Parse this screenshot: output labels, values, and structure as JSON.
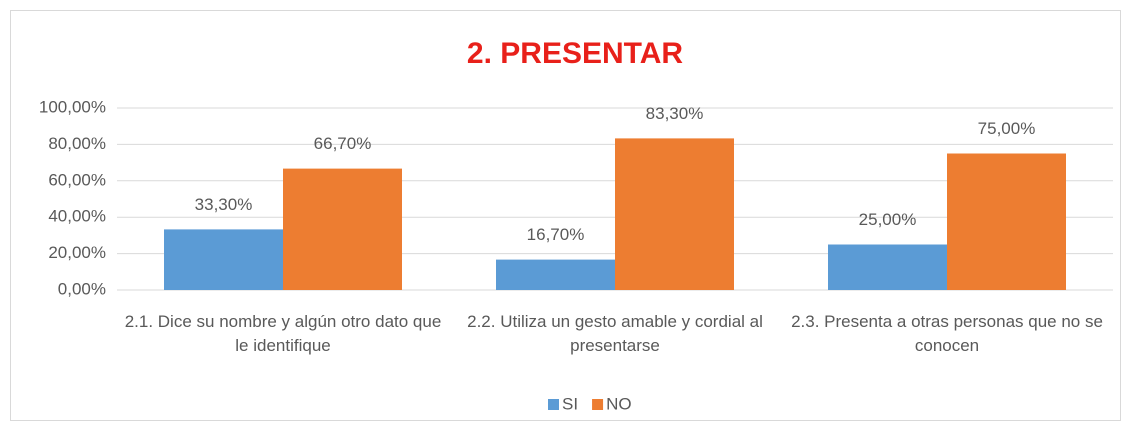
{
  "chart_data": {
    "type": "bar",
    "title": "2. PRESENTAR",
    "categories": [
      "2.1. Dice su nombre y algún otro dato que le identifique",
      "2.2. Utiliza un gesto amable y cordial al presentarse",
      "2.3. Presenta a otras personas que no se conocen"
    ],
    "series": [
      {
        "name": "SI",
        "color": "#5b9bd5",
        "values": [
          33.3,
          16.7,
          25
        ],
        "value_labels": [
          "33,30%",
          "16,70%",
          "25,00%"
        ]
      },
      {
        "name": "NO",
        "color": "#ed7d31",
        "values": [
          66.7,
          83.3,
          75
        ],
        "value_labels": [
          "66,70%",
          "83,30%",
          "75,00%"
        ]
      }
    ],
    "ylim": [
      0,
      100
    ],
    "yticks": [
      {
        "value": 0,
        "label": "0,00%"
      },
      {
        "value": 20,
        "label": "20,00%"
      },
      {
        "value": 40,
        "label": "40,00%"
      },
      {
        "value": 60,
        "label": "60,00%"
      },
      {
        "value": 80,
        "label": "80,00%"
      },
      {
        "value": 100,
        "label": "100,00%"
      }
    ],
    "grid": true,
    "legend": "bottom"
  }
}
